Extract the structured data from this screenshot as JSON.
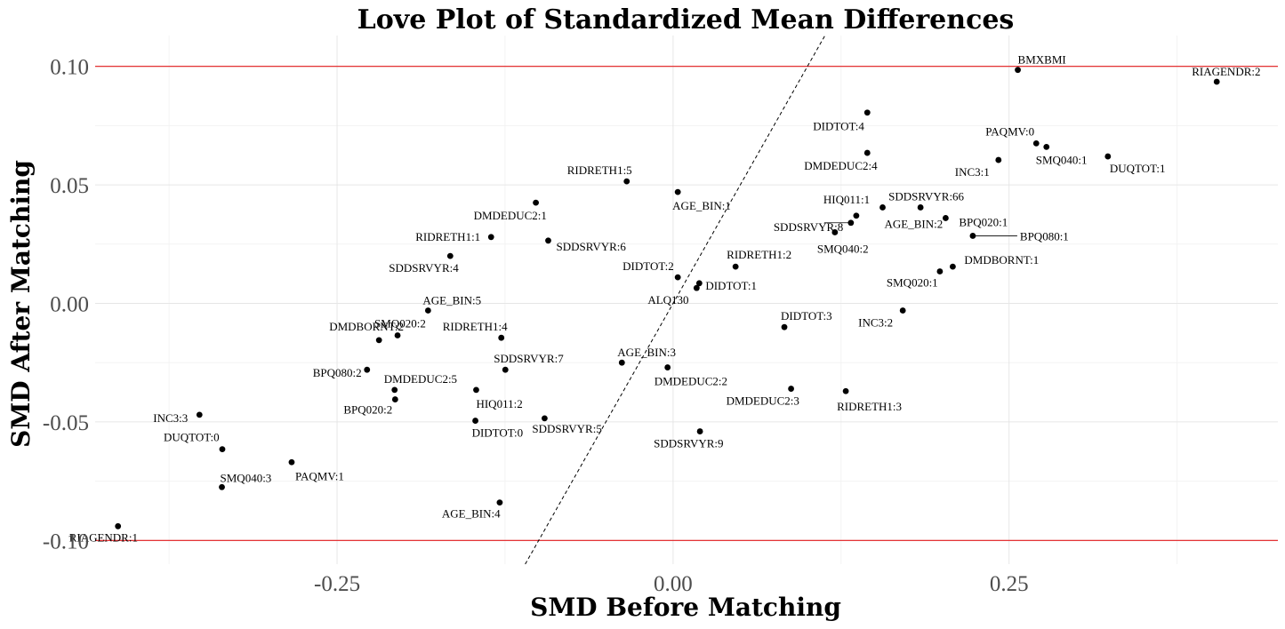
{
  "chart_data": {
    "type": "scatter",
    "title": "Love Plot of Standardized Mean Differences",
    "xlabel": "SMD Before Matching",
    "ylabel": "SMD After Matching",
    "xlim": [
      -0.43,
      0.45
    ],
    "ylim": [
      -0.11,
      0.113
    ],
    "x_ticks": [
      -0.25,
      0.0,
      0.25
    ],
    "x_tick_labels": [
      "-0.25",
      "0.00",
      "0.25"
    ],
    "y_ticks": [
      -0.1,
      -0.05,
      0.0,
      0.05,
      0.1
    ],
    "y_tick_labels": [
      "-0.10",
      "-0.05",
      "0.00",
      "0.05",
      "0.10"
    ],
    "threshold_lines": [
      -0.1,
      0.1
    ],
    "threshold_color": "#e31a1c",
    "reference_line": {
      "type": "identity",
      "style": "dashed"
    },
    "grid": true,
    "point_color": "#000000",
    "points": [
      {
        "label": "BMXBMI",
        "x": 0.2565,
        "y": 0.0985
      },
      {
        "label": "RIAGENDR:2",
        "x": 0.4045,
        "y": 0.0935
      },
      {
        "label": "DIDTOT:4",
        "x": 0.1445,
        "y": 0.0805
      },
      {
        "label": "PAQMV:0",
        "x": 0.2702,
        "y": 0.0675
      },
      {
        "label": "SMQ040:1",
        "x": 0.2778,
        "y": 0.066
      },
      {
        "label": "DMDEDUC2:4",
        "x": 0.1445,
        "y": 0.0635
      },
      {
        "label": "DUQTOT:1",
        "x": 0.3235,
        "y": 0.062
      },
      {
        "label": "INC3:1",
        "x": 0.2421,
        "y": 0.0605
      },
      {
        "label": "RIDRETH1:5",
        "x": -0.0345,
        "y": 0.0515
      },
      {
        "label": "AGE_BIN:1",
        "x": 0.0035,
        "y": 0.047
      },
      {
        "label": "DMDEDUC2:1",
        "x": -0.1021,
        "y": 0.0425
      },
      {
        "label": "SDDSRVYR:66",
        "x": 0.1841,
        "y": 0.0405
      },
      {
        "label": "HIQ011:1",
        "x": 0.1363,
        "y": 0.037
      },
      {
        "label": "BPQ020:1",
        "x": 0.2028,
        "y": 0.036
      },
      {
        "label": "SDDSRVYR:8",
        "x": 0.1323,
        "y": 0.034
      },
      {
        "label": "AGE_BIN:2",
        "x": 0.1559,
        "y": 0.0405
      },
      {
        "label": "SMQ040:2",
        "x": 0.1204,
        "y": 0.03
      },
      {
        "label": "BPQ080:1",
        "x": 0.223,
        "y": 0.0285
      },
      {
        "label": "RIDRETH1:1",
        "x": -0.1354,
        "y": 0.028
      },
      {
        "label": "SDDSRVYR:6",
        "x": -0.0929,
        "y": 0.0265
      },
      {
        "label": "SDDSRVYR:4",
        "x": -0.1658,
        "y": 0.02
      },
      {
        "label": "DMDBORNT:1",
        "x": 0.2081,
        "y": 0.0155
      },
      {
        "label": "RIDRETH1:2",
        "x": 0.0465,
        "y": 0.0155
      },
      {
        "label": "SMQ020:1",
        "x": 0.1985,
        "y": 0.0135
      },
      {
        "label": "DIDTOT:2",
        "x": 0.0035,
        "y": 0.011
      },
      {
        "label": "DIDTOT:1",
        "x": 0.0195,
        "y": 0.0085
      },
      {
        "label": "ALQ130",
        "x": 0.0175,
        "y": 0.0065
      },
      {
        "label": "INC3:2",
        "x": 0.1709,
        "y": -0.003
      },
      {
        "label": "AGE_BIN:5",
        "x": -0.1823,
        "y": -0.003
      },
      {
        "label": "DIDTOT:3",
        "x": 0.0828,
        "y": -0.01
      },
      {
        "label": "SMQ020:2",
        "x": -0.205,
        "y": -0.0135
      },
      {
        "label": "RIDRETH1:4",
        "x": -0.1278,
        "y": -0.0145
      },
      {
        "label": "DMDBORNT:2",
        "x": -0.2188,
        "y": -0.0155
      },
      {
        "label": "AGE_BIN:3",
        "x": -0.0381,
        "y": -0.025
      },
      {
        "label": "DMDEDUC2:2",
        "x": -0.0041,
        "y": -0.027
      },
      {
        "label": "BPQ080:2",
        "x": -0.2277,
        "y": -0.028
      },
      {
        "label": "SDDSRVYR:7",
        "x": -0.1248,
        "y": -0.028
      },
      {
        "label": "DMDEDUC2:3",
        "x": 0.0878,
        "y": -0.036
      },
      {
        "label": "DMDEDUC2:5",
        "x": -0.2072,
        "y": -0.0365
      },
      {
        "label": "HIQ011:2",
        "x": -0.1465,
        "y": -0.0365
      },
      {
        "label": "RIDRETH1:3",
        "x": 0.1285,
        "y": -0.037
      },
      {
        "label": "BPQ020:2",
        "x": -0.2068,
        "y": -0.0405
      },
      {
        "label": "INC3:3",
        "x": -0.3524,
        "y": -0.047
      },
      {
        "label": "SDDSRVYR:5",
        "x": -0.0956,
        "y": -0.0485
      },
      {
        "label": "DIDTOT:0",
        "x": -0.1471,
        "y": -0.0495
      },
      {
        "label": "SDDSRVYR:9",
        "x": 0.02,
        "y": -0.054
      },
      {
        "label": "DUQTOT:0",
        "x": -0.3354,
        "y": -0.0615
      },
      {
        "label": "PAQMV:1",
        "x": -0.2838,
        "y": -0.067
      },
      {
        "label": "SMQ040:3",
        "x": -0.3357,
        "y": -0.0775
      },
      {
        "label": "AGE_BIN:4",
        "x": -0.129,
        "y": -0.084
      },
      {
        "label": "RIAGENDR:1",
        "x": -0.413,
        "y": -0.094
      }
    ]
  }
}
